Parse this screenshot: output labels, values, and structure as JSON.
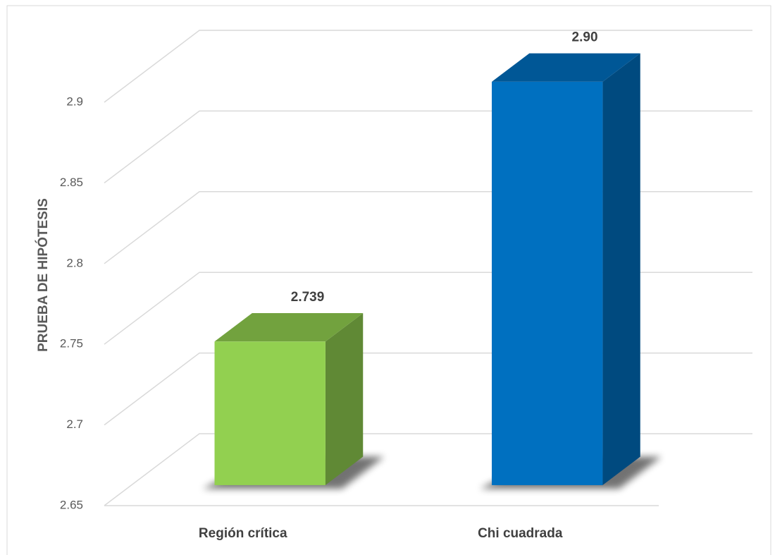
{
  "chart_data": {
    "type": "bar3d",
    "y_axis_label": "PRUEBA DE HIPÓTESIS",
    "categories": [
      "Región crítica",
      "Chi cuadrada"
    ],
    "values": [
      2.739,
      2.9
    ],
    "value_labels": [
      "2.739",
      "2.90"
    ],
    "colors": [
      "#92d050",
      "#0070c0"
    ],
    "ylim": [
      2.65,
      2.9
    ],
    "yticks": [
      2.65,
      2.7,
      2.75,
      2.8,
      2.85,
      2.9
    ],
    "grid": true
  }
}
